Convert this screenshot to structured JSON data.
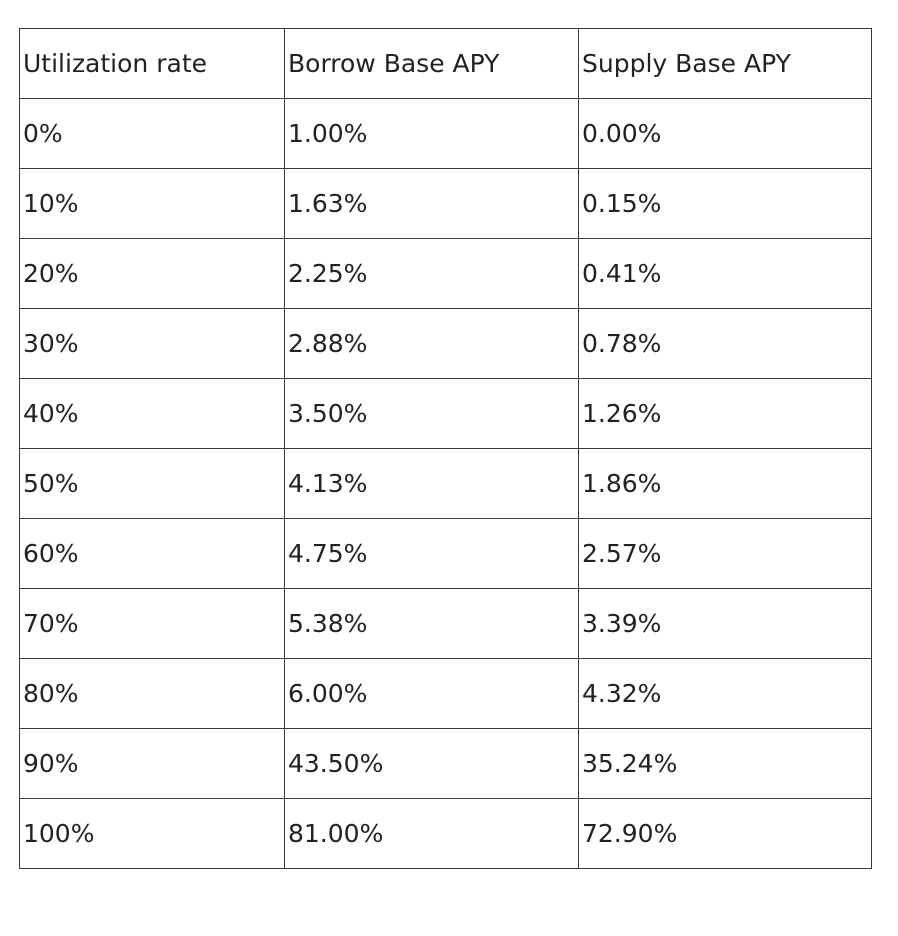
{
  "table": {
    "headers": [
      "Utilization rate",
      "Borrow Base APY",
      "Supply Base APY"
    ],
    "rows": [
      [
        "0%",
        "1.00%",
        "0.00%"
      ],
      [
        "10%",
        "1.63%",
        "0.15%"
      ],
      [
        "20%",
        "2.25%",
        "0.41%"
      ],
      [
        "30%",
        "2.88%",
        "0.78%"
      ],
      [
        "40%",
        "3.50%",
        "1.26%"
      ],
      [
        "50%",
        "4.13%",
        "1.86%"
      ],
      [
        "60%",
        "4.75%",
        "2.57%"
      ],
      [
        "70%",
        "5.38%",
        "3.39%"
      ],
      [
        "80%",
        "6.00%",
        "4.32%"
      ],
      [
        "90%",
        "43.50%",
        "35.24%"
      ],
      [
        "100%",
        "81.00%",
        "72.90%"
      ]
    ]
  }
}
